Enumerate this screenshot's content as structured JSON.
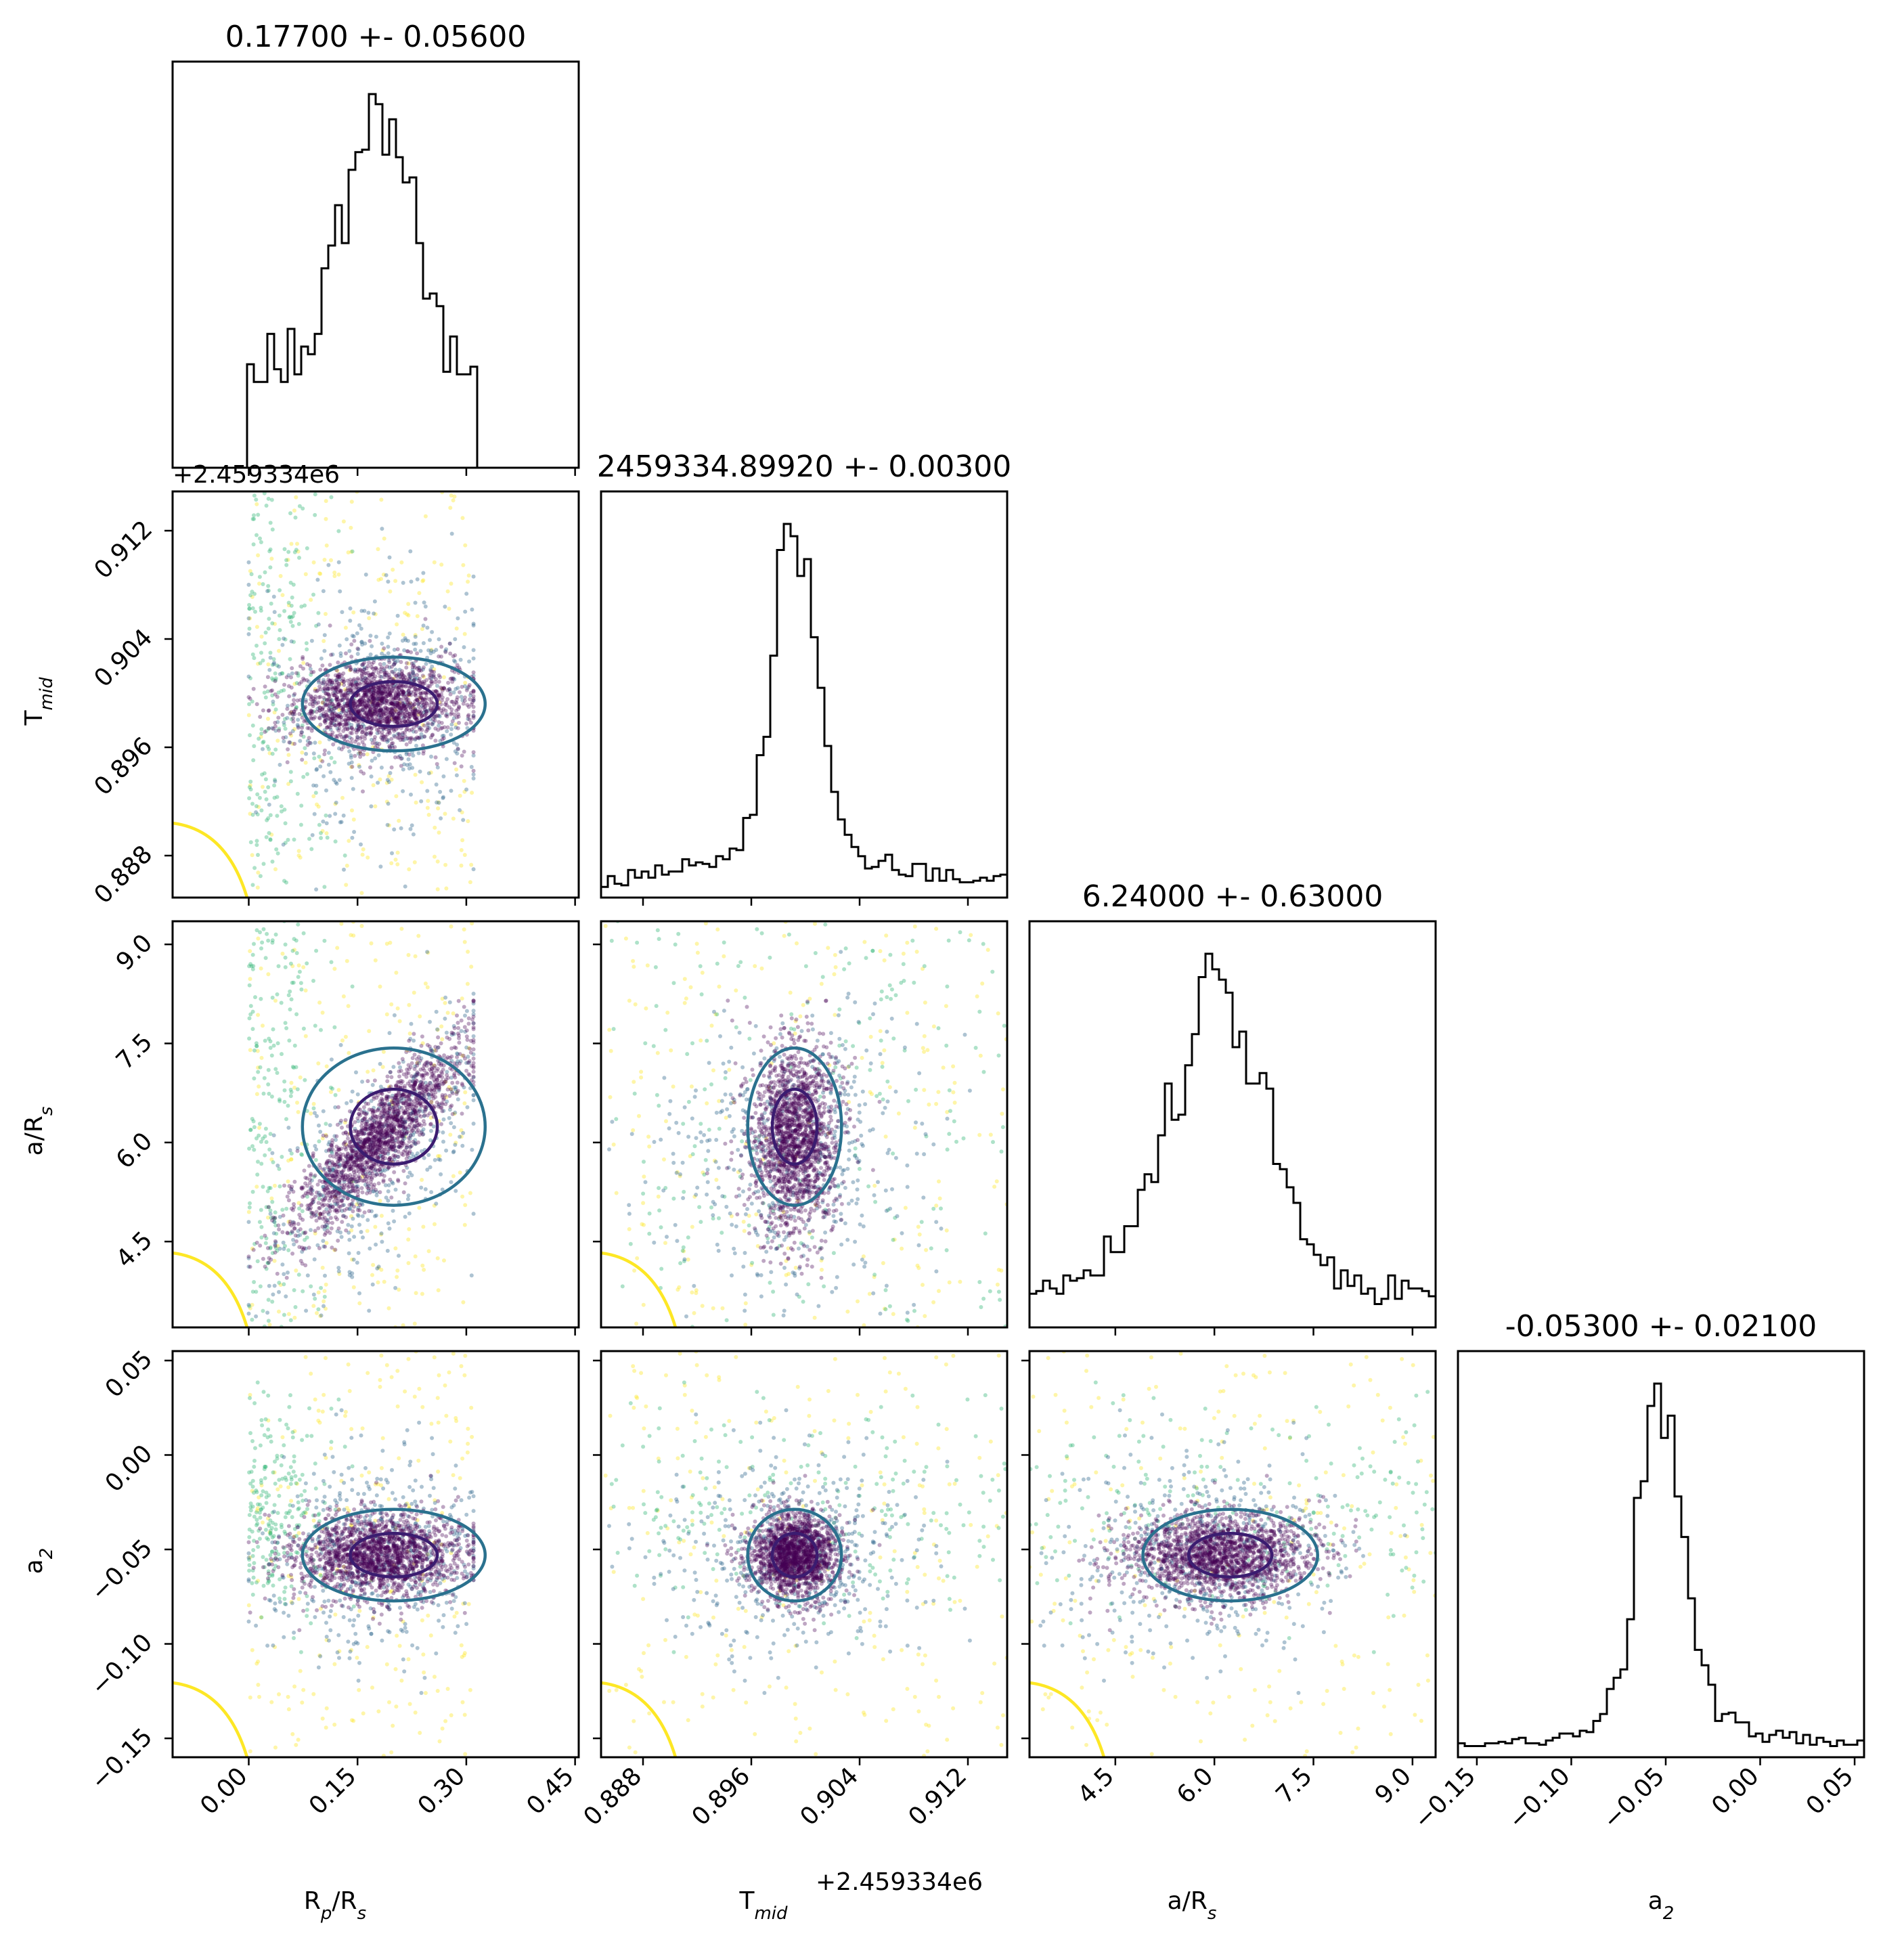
{
  "chart_data": {
    "type": "scatter",
    "subtype": "corner-plot",
    "parameters": [
      {
        "id": "rp",
        "label": "R_p/R_s",
        "label_main": "R",
        "label_sub1": "p",
        "label_mid": "/R",
        "label_sub2": "s",
        "range": [
          -0.105,
          0.455
        ],
        "ticks": [
          0.0,
          0.15,
          0.3,
          0.45
        ],
        "tick_labels": [
          "0.00",
          "0.15",
          "0.30",
          "0.45"
        ],
        "title": "0.17700 +- 0.05600",
        "mean": 0.177,
        "std": 0.056,
        "support": [
          0.0,
          0.31
        ]
      },
      {
        "id": "tmid",
        "label": "T_mid",
        "label_main": "T",
        "label_sub1": "mid",
        "label_mid": "",
        "label_sub2": "",
        "range": [
          0.8849,
          0.9149
        ],
        "ticks": [
          0.888,
          0.896,
          0.904,
          0.912
        ],
        "tick_labels": [
          "0.888",
          "0.896",
          "0.904",
          "0.912"
        ],
        "offset_text": "+2.459334e6",
        "title": "2459334.89920 +- 0.00300",
        "mean": 0.8992,
        "std": 0.003
      },
      {
        "id": "ars",
        "label": "a/R_s",
        "label_main": "a/R",
        "label_sub1": "",
        "label_mid": "",
        "label_sub2": "s",
        "range": [
          3.2,
          9.35
        ],
        "ticks": [
          4.5,
          6.0,
          7.5,
          9.0
        ],
        "tick_labels": [
          "4.5",
          "6.0",
          "7.5",
          "9.0"
        ],
        "title": "6.24000 +- 0.63000",
        "mean": 6.24,
        "std": 0.63
      },
      {
        "id": "a2",
        "label": "a_2",
        "label_main": "a",
        "label_sub1": "2",
        "label_mid": "",
        "label_sub2": "",
        "range": [
          -0.16,
          0.055
        ],
        "ticks": [
          -0.15,
          -0.1,
          -0.05,
          0.0,
          0.05
        ],
        "tick_labels": [
          "−0.15",
          "−0.10",
          "−0.05",
          "0.00",
          "0.05"
        ],
        "title": "-0.05300 +- 0.02100",
        "mean": -0.053,
        "std": 0.021
      }
    ],
    "colors": {
      "core": "#440154",
      "mid": "#31688e",
      "halo": "#35b779",
      "outer": "#fde725",
      "contour_inner": "#3b1c70",
      "contour_outer": "#2a718e",
      "contour_yellow": "#fde725",
      "hist": "#000000"
    },
    "scatter_points_per_panel": 2600,
    "hist_bins": 60,
    "grid": false,
    "legend": "none"
  }
}
